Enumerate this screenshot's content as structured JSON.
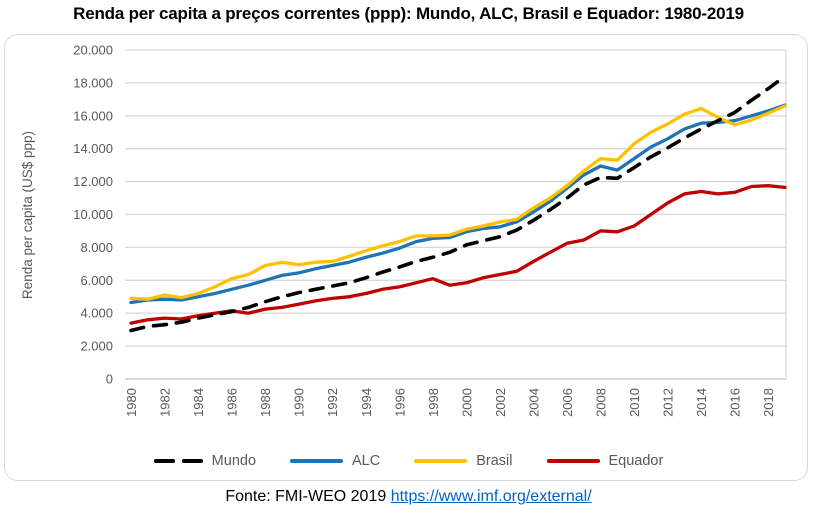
{
  "title": "Renda per capita a preços correntes (ppp): Mundo, ALC, Brasil e Equador: 1980-2019",
  "y_axis": {
    "title": "Renda per capita (US$ ppp)",
    "ticks": [
      "20.000",
      "18.000",
      "16.000",
      "14.000",
      "12.000",
      "10.000",
      "8.000",
      "6.000",
      "4.000",
      "2.000",
      "0"
    ]
  },
  "x_axis": {
    "ticks": [
      "1980",
      "1982",
      "1984",
      "1986",
      "1988",
      "1990",
      "1992",
      "1994",
      "1996",
      "1998",
      "2000",
      "2002",
      "2004",
      "2006",
      "2008",
      "2010",
      "2012",
      "2014",
      "2016",
      "2018"
    ]
  },
  "source": {
    "text": "Fonte: FMI-WEO 2019 ",
    "link": "https://www.imf.org/external/"
  },
  "colors": {
    "grid": "#D9D9D9",
    "zero_axis": "#BFBFBF",
    "axis_text": "#595959",
    "link": "#0563C1",
    "title_text": "#000000"
  },
  "chart_data": {
    "type": "line",
    "title": "Renda per capita a preços correntes (ppp): Mundo, ALC, Brasil e Equador: 1980-2019",
    "xlabel": "",
    "ylabel": "Renda per capita (US$ ppp)",
    "ylim": [
      0,
      20000
    ],
    "xlim": [
      1980,
      2019
    ],
    "grid": "horizontal",
    "legend_position": "bottom",
    "x": [
      1980,
      1981,
      1982,
      1983,
      1984,
      1985,
      1986,
      1987,
      1988,
      1989,
      1990,
      1991,
      1992,
      1993,
      1994,
      1995,
      1996,
      1997,
      1998,
      1999,
      2000,
      2001,
      2002,
      2003,
      2004,
      2005,
      2006,
      2007,
      2008,
      2009,
      2010,
      2011,
      2012,
      2013,
      2014,
      2015,
      2016,
      2017,
      2018,
      2019
    ],
    "series": [
      {
        "name": "Mundo",
        "color": "#000000",
        "style": "dashed",
        "values": [
          2950,
          3200,
          3300,
          3450,
          3700,
          3900,
          4100,
          4350,
          4700,
          5000,
          5250,
          5450,
          5650,
          5850,
          6150,
          6500,
          6800,
          7150,
          7400,
          7700,
          8150,
          8400,
          8650,
          9050,
          9650,
          10300,
          11000,
          11800,
          12250,
          12200,
          12850,
          13500,
          14050,
          14650,
          15200,
          15700,
          16200,
          16950,
          17650,
          18400
        ]
      },
      {
        "name": "ALC",
        "color": "#1F74B8",
        "style": "solid",
        "values": [
          4650,
          4800,
          4850,
          4800,
          5000,
          5200,
          5450,
          5700,
          6000,
          6300,
          6450,
          6700,
          6900,
          7100,
          7400,
          7650,
          7950,
          8350,
          8550,
          8600,
          8950,
          9150,
          9250,
          9550,
          10150,
          10800,
          11600,
          12400,
          12950,
          12700,
          13400,
          14100,
          14600,
          15200,
          15550,
          15600,
          15700,
          16000,
          16300,
          16650
        ]
      },
      {
        "name": "Brasil",
        "color": "#FFC000",
        "style": "solid",
        "values": [
          4900,
          4850,
          5100,
          4950,
          5200,
          5600,
          6100,
          6350,
          6900,
          7100,
          6950,
          7100,
          7150,
          7450,
          7800,
          8100,
          8350,
          8700,
          8700,
          8750,
          9100,
          9300,
          9550,
          9700,
          10400,
          11000,
          11750,
          12650,
          13400,
          13300,
          14300,
          15000,
          15500,
          16100,
          16450,
          15900,
          15450,
          15750,
          16150,
          16600
        ]
      },
      {
        "name": "Equador",
        "color": "#C00000",
        "style": "solid",
        "values": [
          3400,
          3600,
          3700,
          3650,
          3850,
          4000,
          4150,
          4000,
          4250,
          4350,
          4550,
          4750,
          4900,
          5000,
          5200,
          5450,
          5600,
          5850,
          6100,
          5700,
          5850,
          6150,
          6350,
          6550,
          7150,
          7700,
          8250,
          8450,
          9000,
          8950,
          9300,
          10000,
          10700,
          11250,
          11400,
          11250,
          11350,
          11700,
          11750,
          11650
        ]
      }
    ]
  }
}
